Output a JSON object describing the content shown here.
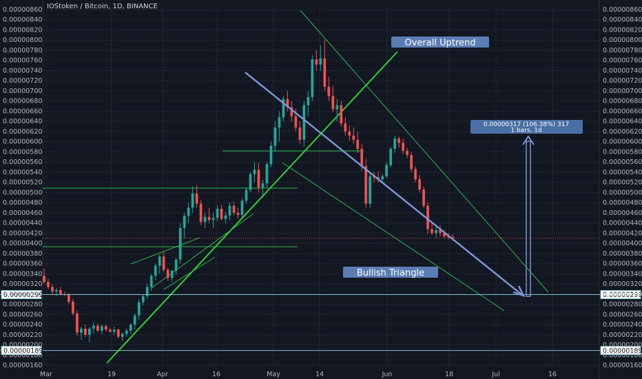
{
  "chart_title": "IOStoken / Bitcoin, 1D, BINANCE",
  "colors": {
    "background": "#131722",
    "grid": "#1f2533",
    "up": "#26a69a",
    "down": "#ef5350",
    "trendline": "#32d033",
    "trendline_thin": "#2db84a",
    "arrow": "#7b96d4",
    "price_line": "#7ac4c8",
    "current_price": "#ef5350"
  },
  "chart_data": {
    "type": "candlestick",
    "title": "IOStoken / Bitcoin, 1D, BINANCE",
    "y_ticks": [
      "0.00000860",
      "0.00000840",
      "0.00000820",
      "0.00000800",
      "0.00000780",
      "0.00000760",
      "0.00000740",
      "0.00000720",
      "0.00000700",
      "0.00000680",
      "0.00000660",
      "0.00000640",
      "0.00000620",
      "0.00000600",
      "0.00000580",
      "0.00000560",
      "0.00000540",
      "0.00000520",
      "0.00000500",
      "0.00000480",
      "0.00000460",
      "0.00000440",
      "0.00000420",
      "0.00000400",
      "0.00000380",
      "0.00000360",
      "0.00000340",
      "0.00000320",
      "0.00000300",
      "0.00000280",
      "0.00000260",
      "0.00000240",
      "0.00000220",
      "0.00000200",
      "0.00000180",
      "0.00000160"
    ],
    "ylim": [
      1.6e-06,
      8.6e-06
    ],
    "x_ticks": [
      "Mar",
      "19",
      "Apr",
      "16",
      "May",
      "14",
      "Jun",
      "18",
      "Jul",
      "16"
    ],
    "price_labels": [
      "0.00000299",
      "0.00000189"
    ],
    "candles": [
      [
        336,
        350,
        320,
        324
      ],
      [
        324,
        330,
        310,
        314
      ],
      [
        314,
        320,
        300,
        305
      ],
      [
        305,
        312,
        296,
        308
      ],
      [
        308,
        315,
        298,
        300
      ],
      [
        300,
        305,
        296,
        299
      ],
      [
        299,
        302,
        280,
        285
      ],
      [
        285,
        290,
        258,
        262
      ],
      [
        262,
        268,
        218,
        224
      ],
      [
        224,
        236,
        210,
        232
      ],
      [
        232,
        240,
        215,
        220
      ],
      [
        220,
        235,
        205,
        232
      ],
      [
        232,
        245,
        222,
        238
      ],
      [
        238,
        242,
        225,
        228
      ],
      [
        228,
        240,
        222,
        237
      ],
      [
        237,
        240,
        226,
        230
      ],
      [
        230,
        234,
        224,
        226
      ],
      [
        226,
        236,
        220,
        230
      ],
      [
        230,
        232,
        212,
        216
      ],
      [
        216,
        224,
        208,
        222
      ],
      [
        222,
        232,
        216,
        228
      ],
      [
        228,
        242,
        222,
        240
      ],
      [
        240,
        262,
        230,
        258
      ],
      [
        258,
        290,
        250,
        284
      ],
      [
        284,
        300,
        278,
        296
      ],
      [
        296,
        320,
        290,
        314
      ],
      [
        314,
        340,
        306,
        336
      ],
      [
        336,
        360,
        328,
        356
      ],
      [
        356,
        378,
        340,
        374
      ],
      [
        374,
        382,
        344,
        348
      ],
      [
        348,
        352,
        326,
        332
      ],
      [
        332,
        348,
        324,
        346
      ],
      [
        346,
        372,
        338,
        368
      ],
      [
        368,
        440,
        360,
        430
      ],
      [
        430,
        460,
        410,
        454
      ],
      [
        454,
        480,
        440,
        470
      ],
      [
        470,
        512,
        460,
        498
      ],
      [
        498,
        515,
        470,
        478
      ],
      [
        478,
        485,
        436,
        442
      ],
      [
        442,
        460,
        430,
        452
      ],
      [
        452,
        470,
        440,
        446
      ],
      [
        446,
        460,
        430,
        450
      ],
      [
        450,
        474,
        444,
        468
      ],
      [
        468,
        476,
        446,
        448
      ],
      [
        448,
        462,
        440,
        455
      ],
      [
        455,
        480,
        445,
        474
      ],
      [
        474,
        482,
        455,
        460
      ],
      [
        460,
        470,
        448,
        456
      ],
      [
        456,
        490,
        450,
        484
      ],
      [
        484,
        510,
        478,
        505
      ],
      [
        505,
        540,
        500,
        536
      ],
      [
        536,
        560,
        520,
        545
      ],
      [
        545,
        558,
        500,
        510
      ],
      [
        510,
        525,
        490,
        518
      ],
      [
        518,
        560,
        510,
        556
      ],
      [
        556,
        600,
        550,
        592
      ],
      [
        592,
        640,
        580,
        628
      ],
      [
        628,
        660,
        600,
        648
      ],
      [
        648,
        690,
        640,
        684
      ],
      [
        684,
        700,
        660,
        668
      ],
      [
        668,
        680,
        640,
        650
      ],
      [
        650,
        665,
        620,
        628
      ],
      [
        628,
        640,
        596,
        604
      ],
      [
        604,
        680,
        590,
        672
      ],
      [
        672,
        700,
        650,
        688
      ],
      [
        688,
        770,
        680,
        762
      ],
      [
        762,
        780,
        740,
        752
      ],
      [
        752,
        790,
        740,
        764
      ],
      [
        764,
        800,
        700,
        708
      ],
      [
        708,
        728,
        680,
        690
      ],
      [
        690,
        710,
        658,
        664
      ],
      [
        664,
        684,
        640,
        672
      ],
      [
        672,
        680,
        630,
        636
      ],
      [
        636,
        648,
        612,
        620
      ],
      [
        620,
        632,
        602,
        612
      ],
      [
        612,
        628,
        596,
        604
      ],
      [
        604,
        620,
        578,
        586
      ],
      [
        586,
        596,
        542,
        552
      ],
      [
        552,
        566,
        470,
        478
      ],
      [
        478,
        540,
        470,
        532
      ],
      [
        532,
        540,
        520,
        530
      ],
      [
        530,
        542,
        520,
        526
      ],
      [
        526,
        536,
        518,
        532
      ],
      [
        532,
        560,
        528,
        554
      ],
      [
        554,
        590,
        550,
        586
      ],
      [
        586,
        612,
        578,
        606
      ],
      [
        606,
        610,
        588,
        598
      ],
      [
        598,
        606,
        576,
        582
      ],
      [
        582,
        588,
        568,
        574
      ],
      [
        574,
        580,
        540,
        546
      ],
      [
        546,
        552,
        520,
        526
      ],
      [
        526,
        534,
        500,
        506
      ],
      [
        506,
        512,
        470,
        474
      ],
      [
        474,
        480,
        418,
        428
      ],
      [
        428,
        440,
        416,
        420
      ],
      [
        420,
        432,
        410,
        426
      ],
      [
        426,
        436,
        414,
        420
      ],
      [
        420,
        426,
        410,
        414
      ],
      [
        414,
        420,
        408,
        412
      ],
      [
        412,
        418,
        406,
        410
      ]
    ],
    "annotations": {
      "overall_uptrend": "Overall Uptrend",
      "bullish_triangle": "Bullish Triangle",
      "measure_line1": "0.00000317 (106.38%) 317",
      "measure_line2": "1 bars, 1d"
    }
  }
}
